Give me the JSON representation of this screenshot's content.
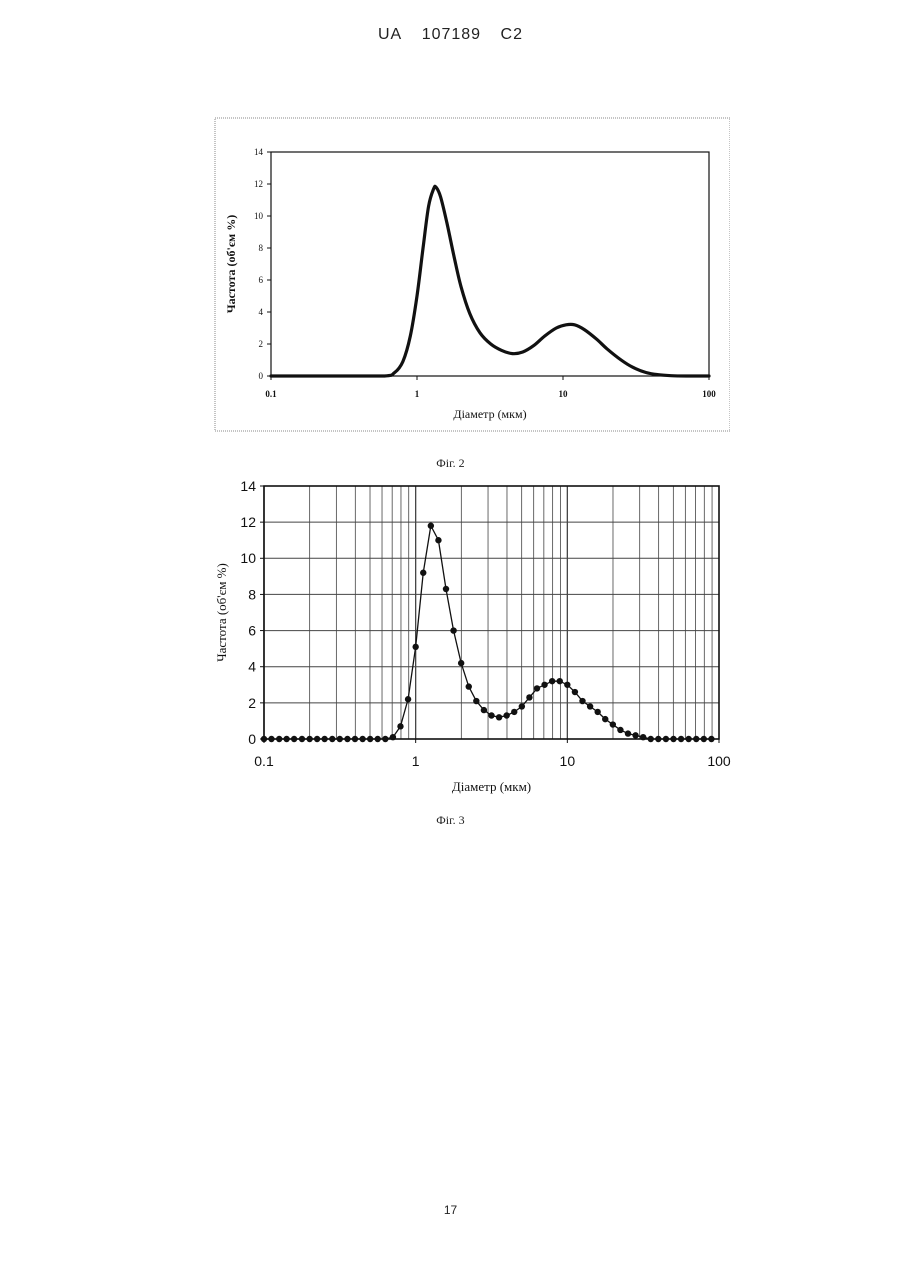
{
  "header": {
    "country": "UA",
    "number": "107189",
    "kind": "C2"
  },
  "page_number": "17",
  "chart_data": [
    {
      "type": "line",
      "caption": "Фіг. 2",
      "xlabel": "Діаметр (мкм)",
      "ylabel": "Частота (об'єм %)",
      "x_scale": "log",
      "xlim": [
        0.1,
        100
      ],
      "ylim": [
        0,
        14
      ],
      "x_ticks": [
        "0.1",
        "1",
        "10",
        "100"
      ],
      "y_ticks": [
        "0",
        "2",
        "4",
        "6",
        "8",
        "10",
        "12",
        "14"
      ],
      "grid": false,
      "series": [
        {
          "x": [
            0.1,
            0.3,
            0.6,
            0.7,
            0.8,
            0.9,
            1.0,
            1.1,
            1.2,
            1.3,
            1.35,
            1.45,
            1.6,
            1.8,
            2.0,
            2.3,
            2.7,
            3.2,
            3.8,
            4.5,
            5.3,
            6.3,
            7.5,
            9.0,
            10.5,
            12.0,
            14.0,
            17.0,
            20.0,
            25.0,
            30.0,
            37.0,
            45.0,
            55.0,
            70.0,
            100.0
          ],
          "y": [
            0,
            0,
            0,
            0.2,
            0.9,
            2.5,
            5.0,
            8.0,
            10.6,
            11.7,
            11.8,
            11.2,
            9.6,
            7.4,
            5.6,
            3.9,
            2.7,
            2.0,
            1.6,
            1.4,
            1.5,
            1.9,
            2.5,
            3.0,
            3.2,
            3.2,
            2.9,
            2.3,
            1.7,
            1.0,
            0.55,
            0.22,
            0.08,
            0.02,
            0,
            0
          ]
        }
      ]
    },
    {
      "type": "line",
      "caption": "Фіг. 3",
      "xlabel": "Діаметр (мкм)",
      "ylabel": "Частота (об'єм %)",
      "x_scale": "log",
      "xlim": [
        0.1,
        100
      ],
      "ylim": [
        0,
        14
      ],
      "x_ticks": [
        "0.1",
        "1",
        "10",
        "100"
      ],
      "y_ticks": [
        "0",
        "2",
        "4",
        "6",
        "8",
        "10",
        "12",
        "14"
      ],
      "grid": true,
      "markers": true,
      "series": [
        {
          "x": [
            0.1,
            0.112,
            0.126,
            0.141,
            0.158,
            0.178,
            0.2,
            0.224,
            0.251,
            0.282,
            0.316,
            0.355,
            0.398,
            0.447,
            0.501,
            0.562,
            0.631,
            0.708,
            0.794,
            0.891,
            1.0,
            1.122,
            1.259,
            1.413,
            1.585,
            1.778,
            1.995,
            2.239,
            2.512,
            2.818,
            3.162,
            3.548,
            3.981,
            4.467,
            5.012,
            5.623,
            6.31,
            7.079,
            7.943,
            8.913,
            10.0,
            11.22,
            12.59,
            14.13,
            15.85,
            17.78,
            19.95,
            22.39,
            25.12,
            28.18,
            31.62,
            35.48,
            39.81,
            44.67,
            50.12,
            56.23,
            63.1,
            70.79,
            79.43,
            89.13
          ],
          "y": [
            0,
            0,
            0,
            0,
            0,
            0,
            0,
            0,
            0,
            0,
            0,
            0,
            0,
            0,
            0,
            0,
            0,
            0.1,
            0.7,
            2.2,
            5.1,
            9.2,
            11.8,
            11.0,
            8.3,
            6.0,
            4.2,
            2.9,
            2.1,
            1.6,
            1.3,
            1.2,
            1.3,
            1.5,
            1.8,
            2.3,
            2.8,
            3.0,
            3.2,
            3.2,
            3.0,
            2.6,
            2.1,
            1.8,
            1.5,
            1.1,
            0.8,
            0.5,
            0.3,
            0.2,
            0.1,
            0,
            0,
            0,
            0,
            0,
            0,
            0,
            0,
            0
          ]
        }
      ]
    }
  ]
}
